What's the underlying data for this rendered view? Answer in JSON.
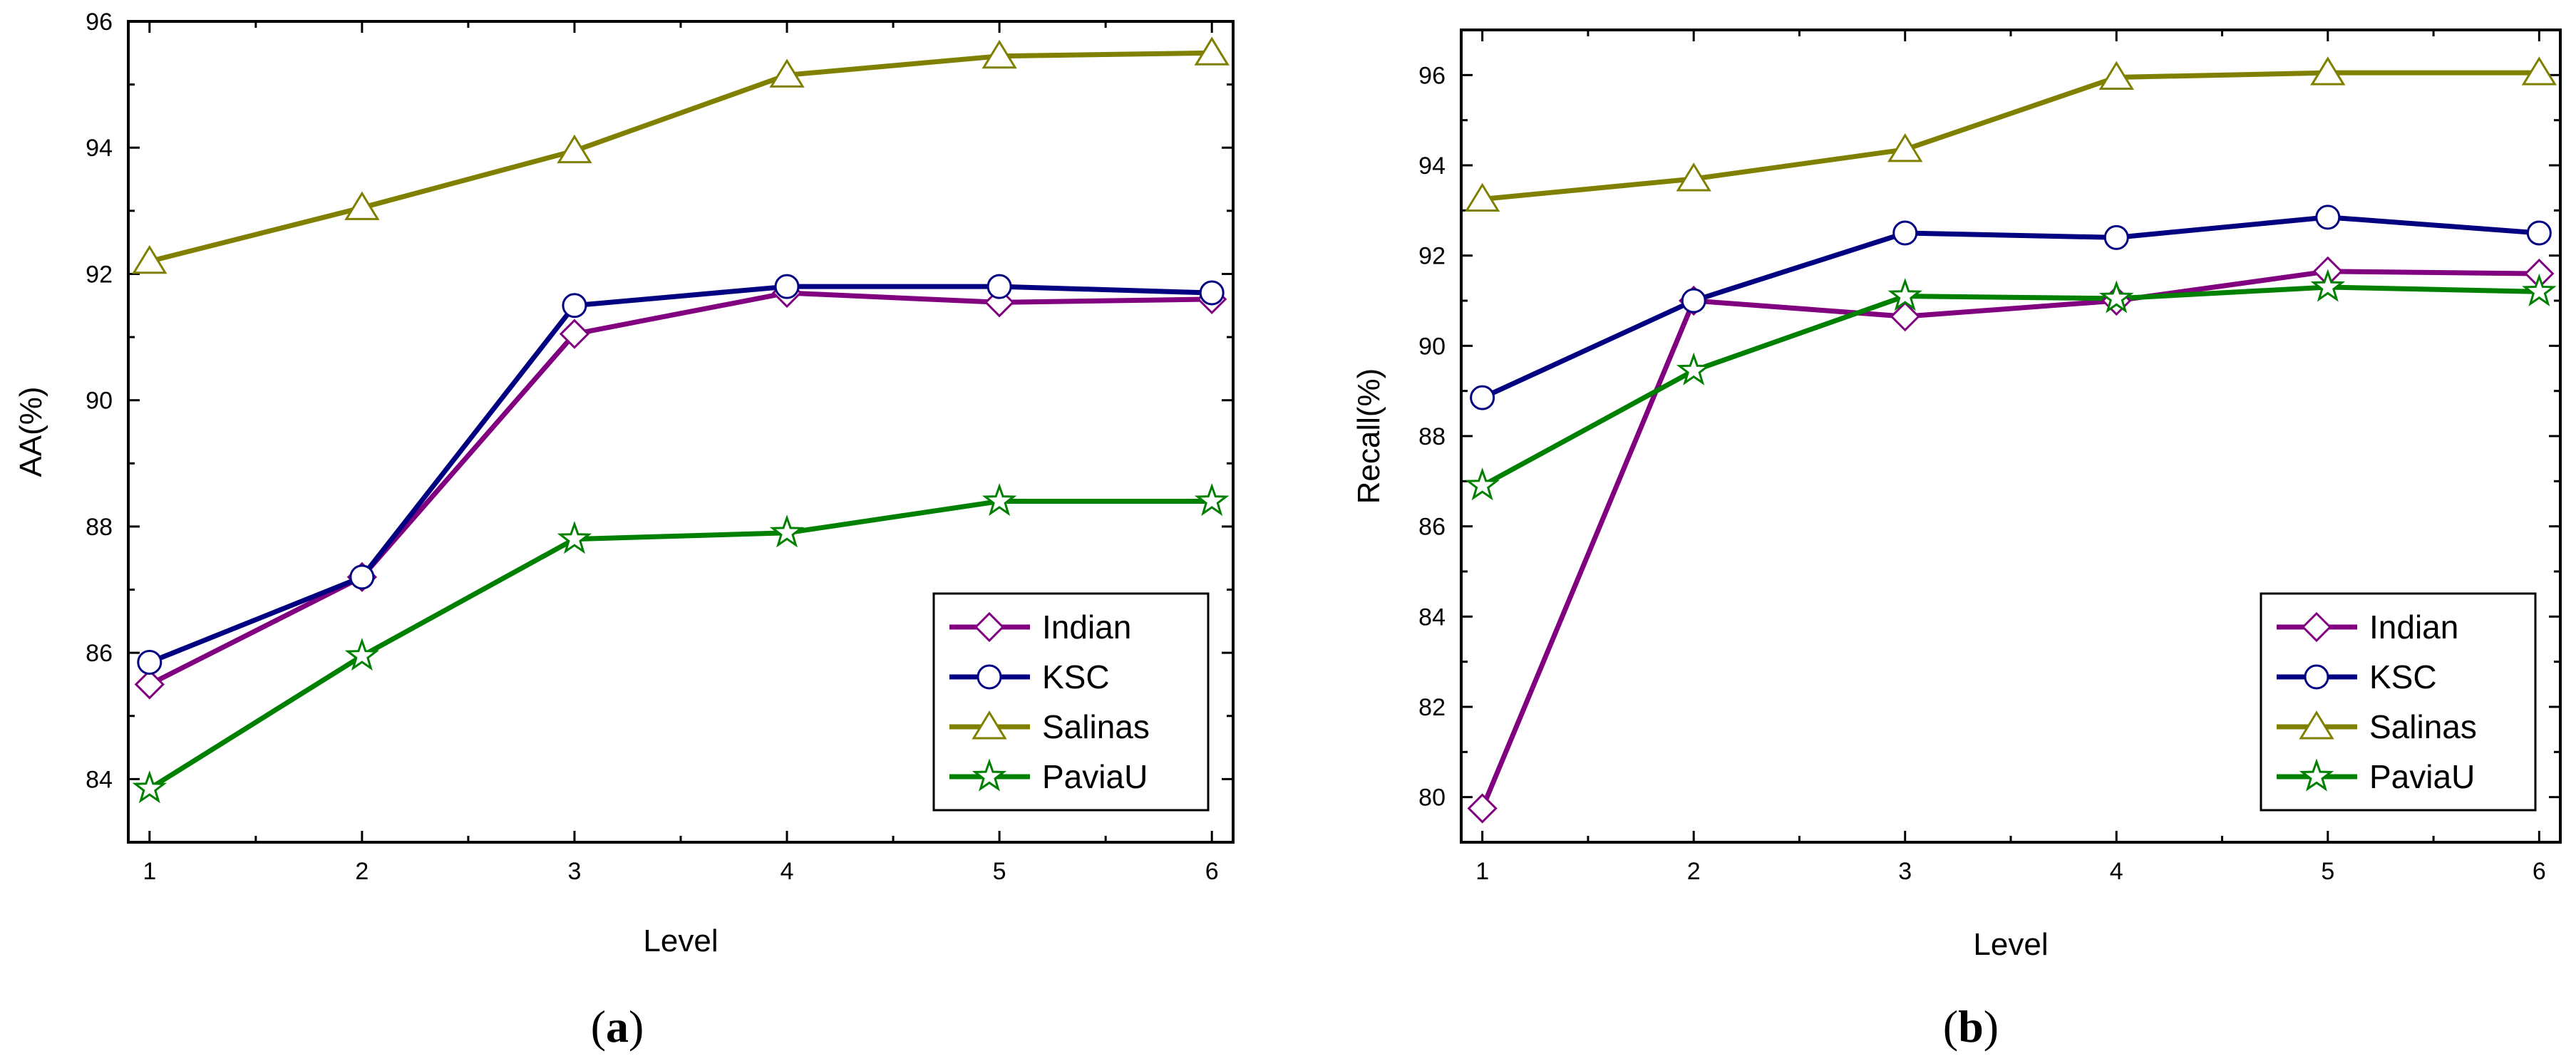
{
  "figure": {
    "captions": [
      "a",
      "b"
    ]
  },
  "chart_data": [
    {
      "type": "line",
      "panel": "a",
      "xlabel": "Level",
      "ylabel": "AA(%)",
      "x": [
        1,
        2,
        3,
        4,
        5,
        6
      ],
      "xticks": [
        1,
        2,
        3,
        4,
        5,
        6
      ],
      "xlim": [
        0.9,
        6.1
      ],
      "ylim": [
        83,
        96
      ],
      "yticks": [
        84,
        86,
        88,
        90,
        92,
        94,
        96
      ],
      "legend_position": "bottom-right",
      "series": [
        {
          "name": "Indian",
          "color": "#800080",
          "marker": "diamond",
          "values": [
            85.5,
            87.2,
            91.05,
            91.7,
            91.55,
            91.6
          ]
        },
        {
          "name": "KSC",
          "color": "#000080",
          "marker": "circle",
          "values": [
            85.85,
            87.2,
            91.5,
            91.8,
            91.8,
            91.7
          ]
        },
        {
          "name": "Salinas",
          "color": "#808000",
          "marker": "triangle",
          "values": [
            92.2,
            93.05,
            93.95,
            95.15,
            95.45,
            95.5
          ]
        },
        {
          "name": "PaviaU",
          "color": "#008000",
          "marker": "star",
          "values": [
            83.85,
            85.95,
            87.8,
            87.9,
            88.4,
            88.4
          ]
        }
      ]
    },
    {
      "type": "line",
      "panel": "b",
      "xlabel": "Level",
      "ylabel": "Recall(%)",
      "x": [
        1,
        2,
        3,
        4,
        5,
        6
      ],
      "xticks": [
        1,
        2,
        3,
        4,
        5,
        6
      ],
      "xlim": [
        0.9,
        6.1
      ],
      "ylim": [
        79,
        97
      ],
      "yticks": [
        80,
        82,
        84,
        86,
        88,
        90,
        92,
        94,
        96
      ],
      "legend_position": "bottom-right",
      "series": [
        {
          "name": "Indian",
          "color": "#800080",
          "marker": "diamond",
          "values": [
            79.75,
            91.0,
            90.65,
            91.0,
            91.65,
            91.6
          ]
        },
        {
          "name": "KSC",
          "color": "#000080",
          "marker": "circle",
          "values": [
            88.85,
            91.0,
            92.5,
            92.4,
            92.85,
            92.5
          ]
        },
        {
          "name": "Salinas",
          "color": "#808000",
          "marker": "triangle",
          "values": [
            93.25,
            93.7,
            94.35,
            95.95,
            96.05,
            96.05
          ]
        },
        {
          "name": "PaviaU",
          "color": "#008000",
          "marker": "star",
          "values": [
            86.9,
            89.45,
            91.1,
            91.05,
            91.3,
            91.2
          ]
        }
      ]
    }
  ]
}
